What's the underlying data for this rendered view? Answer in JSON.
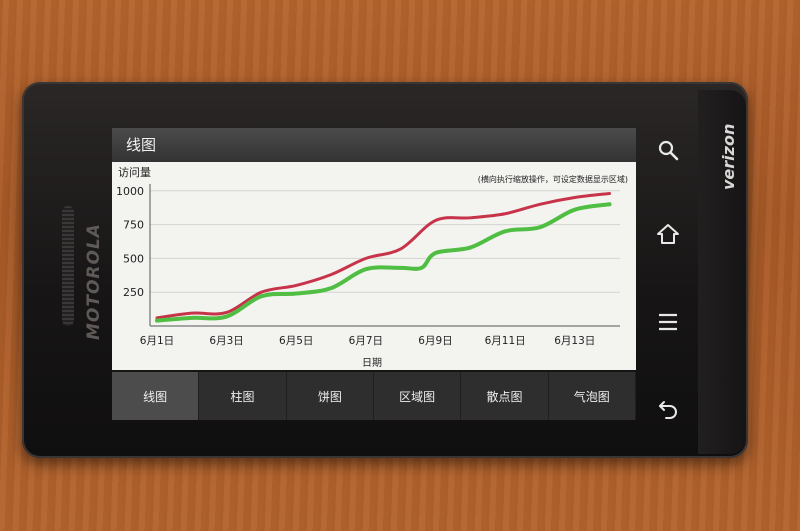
{
  "device": {
    "brand": "MOTOROLA",
    "carrier": "verizon"
  },
  "app": {
    "title": "线图"
  },
  "chart_data": {
    "type": "line",
    "ylabel": "访问量",
    "xlabel": "日期",
    "hint": "(横向执行缩放操作，可设定数据显示区域)",
    "y_ticks": [
      "250",
      "500",
      "750",
      "1000"
    ],
    "x_ticks": [
      "6月1日",
      "6月3日",
      "6月5日",
      "6月7日",
      "6月9日",
      "6月11日",
      "6月13日"
    ],
    "ylim": [
      0,
      1050
    ],
    "xlim": [
      0.8,
      14.3
    ],
    "grid": true,
    "series": [
      {
        "color": "#c7344a",
        "x": [
          1,
          2,
          3,
          4,
          5,
          6,
          7,
          8,
          9,
          10,
          11,
          12,
          13,
          14
        ],
        "values": [
          60,
          95,
          100,
          250,
          300,
          380,
          500,
          570,
          780,
          800,
          830,
          900,
          950,
          980
        ]
      },
      {
        "color": "#4fbe43",
        "x": [
          1,
          2,
          3,
          4,
          5,
          6,
          7,
          8,
          8.6,
          9,
          10,
          11,
          12,
          13,
          14
        ],
        "values": [
          40,
          60,
          70,
          220,
          240,
          280,
          420,
          430,
          430,
          540,
          580,
          700,
          730,
          860,
          900
        ]
      }
    ]
  },
  "tabs": [
    {
      "label": "线图",
      "active": true
    },
    {
      "label": "柱图"
    },
    {
      "label": "饼图"
    },
    {
      "label": "区域图"
    },
    {
      "label": "散点图"
    },
    {
      "label": "气泡图"
    }
  ],
  "keys": [
    "search-icon",
    "home-icon",
    "menu-icon",
    "back-icon"
  ]
}
